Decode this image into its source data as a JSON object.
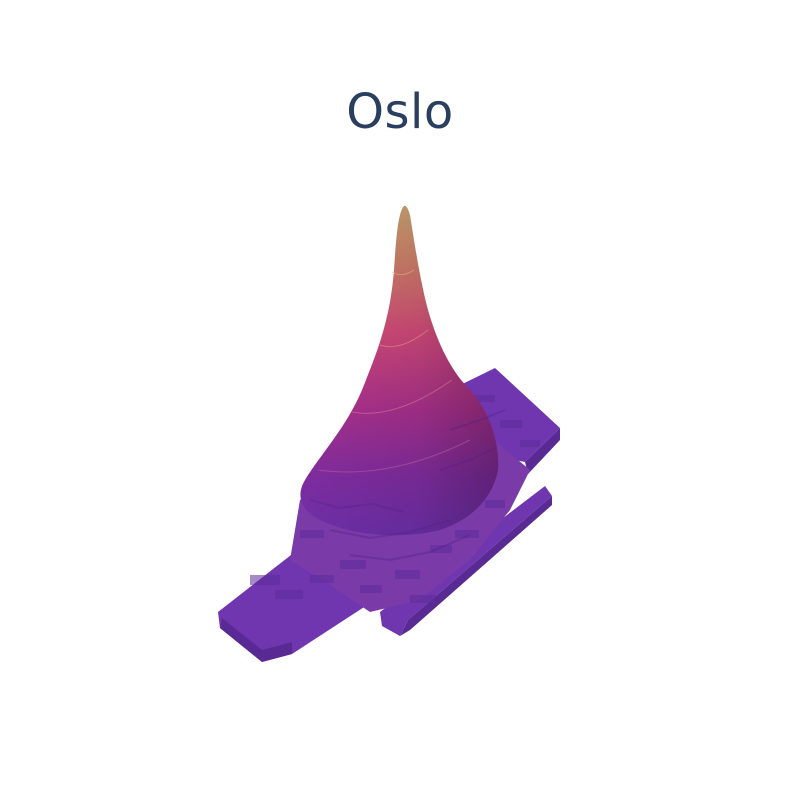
{
  "chart_data": {
    "type": "surface",
    "title": "Oslo",
    "colorscale": [
      "#6b2fa8",
      "#8e2e9c",
      "#b3308a",
      "#d4407a",
      "#c8706a",
      "#c79a6e"
    ],
    "base_color": "#6f36b0",
    "legend": "none",
    "axes_visible": false
  }
}
